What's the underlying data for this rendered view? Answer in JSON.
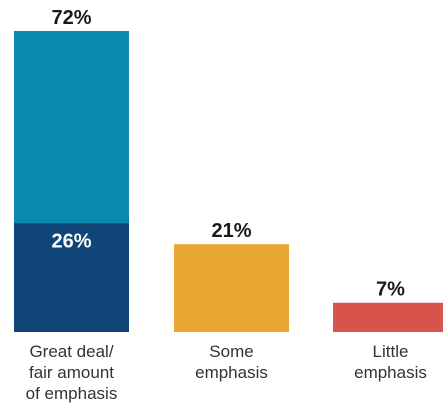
{
  "chart_data": {
    "type": "bar",
    "categories": [
      [
        "Great deal/",
        "fair amount",
        "of emphasis"
      ],
      [
        "Some",
        "emphasis"
      ],
      [
        "Little",
        "emphasis"
      ]
    ],
    "values": [
      72,
      21,
      7
    ],
    "value_labels": [
      "72%",
      "21%",
      "7%"
    ],
    "sub_segment": {
      "category_index": 0,
      "value": 26,
      "label": "26%",
      "color": "#0f4677"
    },
    "colors": [
      "#0a8ab1",
      "#e9a733",
      "#d9534a"
    ],
    "title": "",
    "xlabel": "",
    "ylabel": "",
    "ylim": [
      0,
      72
    ]
  }
}
